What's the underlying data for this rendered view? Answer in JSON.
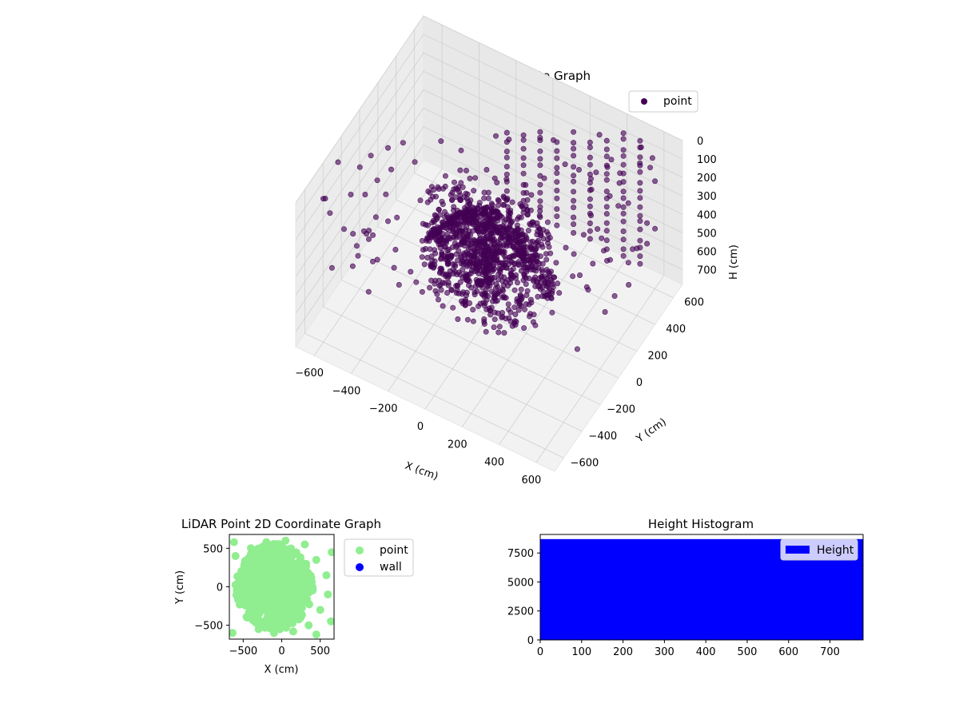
{
  "chart_data": [
    {
      "type": "scatter3d",
      "title": "LiDAR Point 3D Coordinate Graph",
      "xlabel": "X (cm)",
      "ylabel": "Y (cm)",
      "zlabel": "H (cm)",
      "xlim": [
        -700,
        700
      ],
      "ylim": [
        -700,
        700
      ],
      "zlim": [
        0,
        780
      ],
      "z_inverted": true,
      "x_ticks": [
        -600,
        -400,
        -200,
        0,
        200,
        400,
        600
      ],
      "y_ticks": [
        -600,
        -400,
        -200,
        0,
        200,
        400,
        600
      ],
      "z_ticks": [
        0,
        100,
        200,
        300,
        400,
        500,
        600,
        700
      ],
      "legend": {
        "placement": "top-right",
        "entries": [
          {
            "name": "point",
            "color": "#440154"
          }
        ]
      },
      "grid": true,
      "series": [
        {
          "name": "point",
          "color": "#440154",
          "description_of_distribution": "dense cluster near origin plus sparse ring of points",
          "points": [
            [
              -620,
              -560,
              40
            ],
            [
              -540,
              -420,
              80
            ],
            [
              -600,
              -200,
              120
            ],
            [
              -560,
              100,
              60
            ],
            [
              -500,
              350,
              90
            ],
            [
              -420,
              520,
              30
            ],
            [
              -300,
              620,
              60
            ],
            [
              -100,
              640,
              40
            ],
            [
              120,
              620,
              80
            ],
            [
              320,
              560,
              50
            ],
            [
              500,
              420,
              70
            ],
            [
              600,
              200,
              40
            ],
            [
              640,
              -40,
              90
            ],
            [
              600,
              -300,
              60
            ],
            [
              520,
              -520,
              50
            ],
            [
              300,
              -620,
              80
            ],
            [
              60,
              -640,
              40
            ],
            [
              -200,
              -620,
              70
            ],
            [
              -400,
              -560,
              110
            ],
            [
              -640,
              -60,
              30
            ],
            [
              -350,
              -300,
              200
            ],
            [
              -250,
              200,
              150
            ],
            [
              150,
              300,
              180
            ],
            [
              250,
              -200,
              160
            ],
            [
              0,
              -400,
              120
            ],
            [
              0,
              0,
              300
            ],
            [
              -80,
              40,
              350
            ],
            [
              60,
              -60,
              380
            ],
            [
              -40,
              -80,
              420
            ],
            [
              100,
              80,
              330
            ],
            [
              -150,
              -50,
              280
            ],
            [
              120,
              -120,
              260
            ],
            [
              -60,
              150,
              310
            ],
            [
              30,
              120,
              400
            ],
            [
              -120,
              90,
              360
            ],
            [
              80,
              20,
              450
            ],
            [
              -20,
              -30,
              480
            ],
            [
              160,
              40,
              300
            ],
            [
              -100,
              -150,
              340
            ],
            [
              40,
              60,
              520
            ],
            [
              -200,
              0,
              250
            ],
            [
              200,
              0,
              270
            ],
            [
              0,
              200,
              290
            ],
            [
              0,
              -200,
              310
            ],
            [
              -50,
              50,
              600
            ],
            [
              50,
              -50,
              620
            ],
            [
              -30,
              10,
              700
            ],
            [
              20,
              30,
              680
            ],
            [
              10,
              -10,
              740
            ],
            [
              -10,
              20,
              760
            ]
          ]
        }
      ]
    },
    {
      "type": "scatter",
      "title": "LiDAR Point 2D Coordinate Graph",
      "xlabel": "X (cm)",
      "ylabel": "Y (cm)",
      "xlim": [
        -680,
        680
      ],
      "ylim": [
        -680,
        680
      ],
      "x_ticks": [
        -500,
        0,
        500
      ],
      "y_ticks": [
        -500,
        0,
        500
      ],
      "legend": {
        "placement": "outside-right",
        "entries": [
          {
            "name": "point",
            "color": "#90ee90"
          },
          {
            "name": "wall",
            "color": "#0000ff"
          }
        ]
      },
      "series": [
        {
          "name": "point",
          "color": "#90ee90",
          "points": [
            [
              -600,
              400
            ],
            [
              -500,
              200
            ],
            [
              -550,
              -100
            ],
            [
              -450,
              -400
            ],
            [
              -300,
              -550
            ],
            [
              -100,
              -600
            ],
            [
              150,
              -580
            ],
            [
              350,
              -500
            ],
            [
              500,
              -300
            ],
            [
              600,
              -100
            ],
            [
              580,
              150
            ],
            [
              450,
              350
            ],
            [
              300,
              550
            ],
            [
              50,
              600
            ],
            [
              -200,
              580
            ],
            [
              -400,
              500
            ],
            [
              -100,
              0
            ],
            [
              0,
              100
            ],
            [
              100,
              -50
            ],
            [
              -200,
              -100
            ],
            [
              -50,
              -200
            ],
            [
              200,
              100
            ],
            [
              -300,
              200
            ],
            [
              150,
              -200
            ],
            [
              0,
              0
            ],
            [
              -150,
              300
            ],
            [
              100,
              300
            ],
            [
              250,
              -350
            ],
            [
              -350,
              -250
            ],
            [
              400,
              0
            ],
            [
              -450,
              50
            ],
            [
              640,
              -450
            ],
            [
              650,
              450
            ],
            [
              -620,
              580
            ],
            [
              450,
              -620
            ],
            [
              -640,
              -600
            ]
          ]
        },
        {
          "name": "wall",
          "color": "#0000ff",
          "points": []
        }
      ]
    },
    {
      "type": "bar",
      "title": "Height Histogram",
      "xlabel": "",
      "ylabel": "",
      "xlim": [
        0,
        780
      ],
      "ylim": [
        0,
        9100
      ],
      "x_ticks": [
        0,
        100,
        200,
        300,
        400,
        500,
        600,
        700
      ],
      "y_ticks": [
        0,
        2500,
        5000,
        7500
      ],
      "legend": {
        "placement": "top-right",
        "entries": [
          {
            "name": "Height",
            "color": "#0000ff"
          }
        ]
      },
      "series": [
        {
          "name": "Height",
          "color": "#0000ff",
          "bin_range": [
            0,
            780
          ],
          "value": 8700
        }
      ]
    }
  ]
}
